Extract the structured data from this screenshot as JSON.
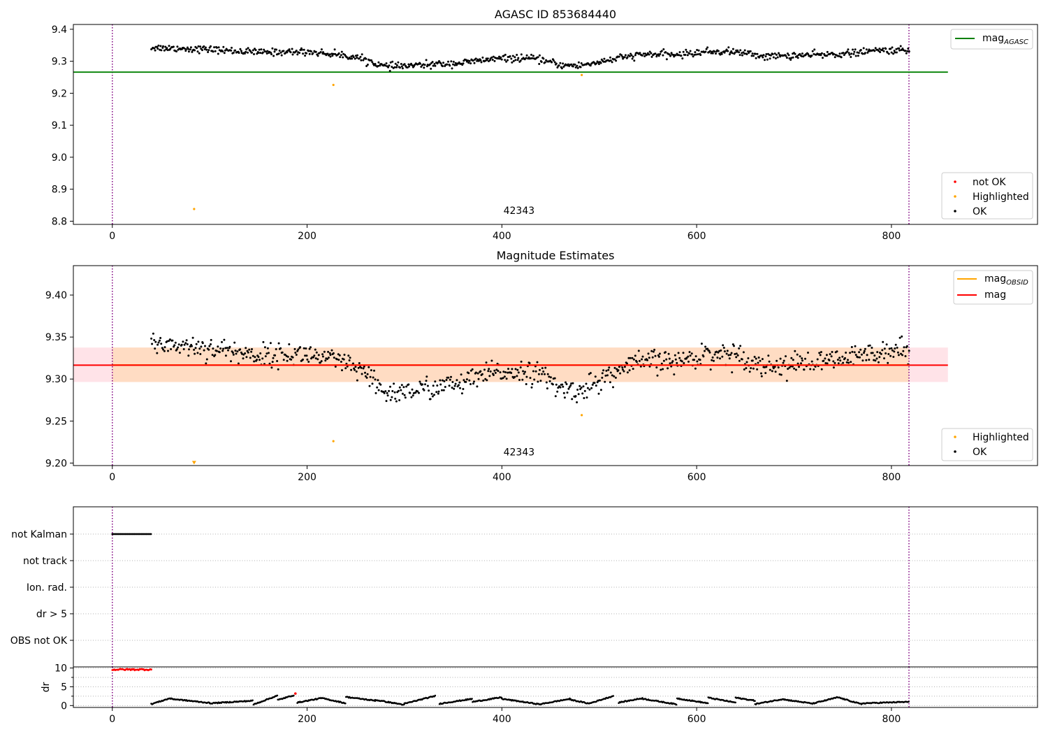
{
  "figure": {
    "width": 1500,
    "height": 1050
  },
  "colors": {
    "ok": "#000000",
    "highlighted": "#ffa500",
    "not_ok": "#ff0000",
    "agasc_line": "#008000",
    "obsid_line": "#ffa500",
    "mag_line": "#ff0000",
    "mag_band": "#ffc0cb",
    "obsid_band": "#ffdab9",
    "obsid_marker": "#800080",
    "grid": "#b0b0b0"
  },
  "chart_data": [
    {
      "name": "agasc",
      "type": "scatter",
      "title": "AGASC ID 853684440",
      "xlim": [
        -40,
        950
      ],
      "ylim": [
        8.79,
        9.415
      ],
      "xticks": [
        0,
        200,
        400,
        600,
        800
      ],
      "yticks": [
        8.8,
        8.9,
        9.0,
        9.1,
        9.2,
        9.3,
        9.4
      ],
      "ytick_labels": [
        "8.8",
        "8.9",
        "9.0",
        "9.1",
        "9.2",
        "9.3",
        "9.4"
      ],
      "obsid_lines_x": [
        0,
        818
      ],
      "annotation": {
        "text": "42343",
        "x": 409,
        "y": 8.81
      },
      "hlines": [
        {
          "name": "mag_AGASC",
          "label_base": "mag",
          "label_sub": "AGASC",
          "y": 9.266,
          "x": [
            -40,
            858
          ],
          "color": "#008000"
        }
      ],
      "ok_series": {
        "x_range": [
          40,
          818
        ],
        "count": 820,
        "noise": 0.009,
        "trend": [
          [
            40,
            9.343
          ],
          [
            100,
            9.337
          ],
          [
            150,
            9.328
          ],
          [
            200,
            9.33
          ],
          [
            240,
            9.318
          ],
          [
            260,
            9.305
          ],
          [
            280,
            9.283
          ],
          [
            300,
            9.285
          ],
          [
            330,
            9.29
          ],
          [
            360,
            9.295
          ],
          [
            390,
            9.307
          ],
          [
            420,
            9.31
          ],
          [
            440,
            9.305
          ],
          [
            460,
            9.288
          ],
          [
            480,
            9.286
          ],
          [
            500,
            9.298
          ],
          [
            530,
            9.315
          ],
          [
            550,
            9.322
          ],
          [
            580,
            9.32
          ],
          [
            610,
            9.33
          ],
          [
            640,
            9.33
          ],
          [
            670,
            9.315
          ],
          [
            700,
            9.318
          ],
          [
            730,
            9.32
          ],
          [
            760,
            9.325
          ],
          [
            790,
            9.335
          ],
          [
            818,
            9.333
          ]
        ]
      },
      "highlighted": [
        {
          "x": 84,
          "y": 8.838
        },
        {
          "x": 227,
          "y": 9.226
        },
        {
          "x": 482,
          "y": 9.257
        }
      ],
      "not_ok": [],
      "legend_lines": [
        {
          "label_base": "mag",
          "label_sub": "AGASC",
          "color": "#008000"
        }
      ],
      "legend_points": [
        {
          "label": "not OK",
          "color": "#ff0000"
        },
        {
          "label": "Highlighted",
          "color": "#ffa500"
        },
        {
          "label": "OK",
          "color": "#000000"
        }
      ]
    },
    {
      "name": "estimates",
      "type": "scatter",
      "title": "Magnitude Estimates",
      "xlim": [
        -40,
        950
      ],
      "ylim": [
        9.197,
        9.435
      ],
      "xticks": [
        0,
        200,
        400,
        600,
        800
      ],
      "yticks": [
        9.2,
        9.25,
        9.3,
        9.35,
        9.4
      ],
      "ytick_labels": [
        "9.20",
        "9.25",
        "9.30",
        "9.35",
        "9.40"
      ],
      "obsid_lines_x": [
        0,
        818
      ],
      "annotation": {
        "text": "42343",
        "x": 409,
        "y": 9.204
      },
      "hlines": [
        {
          "name": "mag_OBSID",
          "label_base": "mag",
          "label_sub": "OBSID",
          "y": 9.3167,
          "x": [
            0,
            818
          ],
          "color": "#ffa500"
        },
        {
          "name": "mag",
          "label_base": "mag",
          "label_sub": "",
          "y": 9.3165,
          "x": [
            -40,
            858
          ],
          "color": "#ff0000"
        }
      ],
      "bands": [
        {
          "name": "mag_band",
          "y": [
            9.2965,
            9.3375
          ],
          "x": [
            -40,
            858
          ],
          "color": "#ffc0cb",
          "opacity": 0.45
        },
        {
          "name": "obsid_band",
          "y": [
            9.2965,
            9.3375
          ],
          "x": [
            0,
            818
          ],
          "color": "#ffdab9",
          "opacity": 0.8
        }
      ],
      "ok_series": {
        "x_range": [
          40,
          818
        ],
        "count": 820,
        "noise": 0.011,
        "trend": [
          [
            40,
            9.343
          ],
          [
            100,
            9.337
          ],
          [
            150,
            9.328
          ],
          [
            200,
            9.33
          ],
          [
            240,
            9.318
          ],
          [
            260,
            9.305
          ],
          [
            280,
            9.283
          ],
          [
            300,
            9.285
          ],
          [
            330,
            9.29
          ],
          [
            360,
            9.295
          ],
          [
            390,
            9.307
          ],
          [
            420,
            9.31
          ],
          [
            440,
            9.305
          ],
          [
            460,
            9.288
          ],
          [
            480,
            9.286
          ],
          [
            500,
            9.298
          ],
          [
            530,
            9.315
          ],
          [
            550,
            9.322
          ],
          [
            580,
            9.32
          ],
          [
            610,
            9.33
          ],
          [
            640,
            9.33
          ],
          [
            670,
            9.315
          ],
          [
            700,
            9.318
          ],
          [
            730,
            9.32
          ],
          [
            760,
            9.325
          ],
          [
            790,
            9.335
          ],
          [
            818,
            9.333
          ]
        ]
      },
      "highlighted": [
        {
          "x": 84,
          "y": 9.2,
          "marker": "v"
        },
        {
          "x": 227,
          "y": 9.226
        },
        {
          "x": 482,
          "y": 9.257
        }
      ],
      "legend_lines": [
        {
          "label_base": "mag",
          "label_sub": "OBSID",
          "color": "#ffa500"
        },
        {
          "label_base": "mag",
          "label_sub": "",
          "color": "#ff0000"
        }
      ],
      "legend_points": [
        {
          "label": "Highlighted",
          "color": "#ffa500"
        },
        {
          "label": "OK",
          "color": "#000000"
        }
      ]
    },
    {
      "name": "flags",
      "type": "scatter",
      "xlim": [
        -40,
        950
      ],
      "categories": [
        "not Kalman",
        "not track",
        "Ion. rad.",
        "dr > 5",
        "OBS not OK"
      ],
      "obsid_lines_x": [
        0,
        818
      ],
      "flagged": [
        {
          "category": "not Kalman",
          "x_range": [
            0,
            40
          ]
        }
      ]
    },
    {
      "name": "dr",
      "type": "scatter",
      "ylabel": "dr",
      "xlim": [
        -40,
        950
      ],
      "ylim": [
        -0.5,
        10.3
      ],
      "xticks": [
        0,
        200,
        400,
        600,
        800
      ],
      "yticks": [
        0,
        5,
        10
      ],
      "ytick_labels": [
        "0",
        "5",
        "10"
      ],
      "obsid_lines_x": [
        0,
        818
      ],
      "early_red": {
        "x_range": [
          0,
          40
        ],
        "y": 9.6
      },
      "red_points": [
        {
          "x": 188,
          "y": 3.2
        }
      ],
      "segments": [
        [
          40,
          60,
          0.4,
          2.0
        ],
        [
          60,
          100,
          1.8,
          0.7
        ],
        [
          100,
          145,
          0.6,
          1.3
        ],
        [
          145,
          170,
          0.3,
          2.7
        ],
        [
          170,
          187,
          1.5,
          2.8
        ],
        [
          190,
          215,
          0.8,
          2.0
        ],
        [
          215,
          240,
          2.0,
          0.6
        ],
        [
          240,
          270,
          2.3,
          1.3
        ],
        [
          270,
          300,
          1.5,
          0.2
        ],
        [
          300,
          332,
          0.5,
          2.6
        ],
        [
          336,
          370,
          0.5,
          1.8
        ],
        [
          370,
          400,
          1.0,
          2.2
        ],
        [
          400,
          440,
          1.8,
          0.3
        ],
        [
          440,
          470,
          0.4,
          1.8
        ],
        [
          470,
          490,
          1.6,
          0.5
        ],
        [
          490,
          515,
          0.6,
          2.6
        ],
        [
          520,
          545,
          0.8,
          2.0
        ],
        [
          545,
          580,
          1.8,
          0.3
        ],
        [
          580,
          612,
          1.9,
          0.6
        ],
        [
          612,
          640,
          2.1,
          0.8
        ],
        [
          640,
          660,
          2.1,
          1.3
        ],
        [
          660,
          690,
          0.4,
          1.8
        ],
        [
          690,
          720,
          1.6,
          0.5
        ],
        [
          720,
          745,
          0.6,
          2.2
        ],
        [
          745,
          770,
          2.2,
          0.3
        ],
        [
          770,
          818,
          0.6,
          1.0
        ]
      ]
    }
  ]
}
